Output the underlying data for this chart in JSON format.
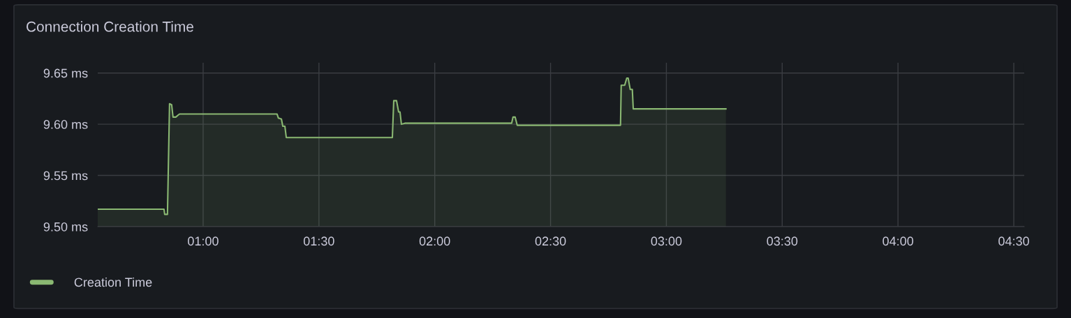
{
  "chart_data": {
    "type": "area",
    "title": "Connection Creation Time",
    "xlim": [
      0.545,
      4.545
    ],
    "xticks": [
      {
        "value": 1,
        "label": "01:00"
      },
      {
        "value": 1.5,
        "label": "01:30"
      },
      {
        "value": 2,
        "label": "02:00"
      },
      {
        "value": 2.5,
        "label": "02:30"
      },
      {
        "value": 3,
        "label": "03:00"
      },
      {
        "value": 3.5,
        "label": "03:30"
      },
      {
        "value": 4,
        "label": "04:00"
      },
      {
        "value": 4.5,
        "label": "04:30"
      }
    ],
    "ylim": [
      9.5,
      9.66
    ],
    "yticks": [
      {
        "value": 9.5,
        "label": "9.50 ms"
      },
      {
        "value": 9.55,
        "label": "9.55 ms"
      },
      {
        "value": 9.6,
        "label": "9.60 ms"
      },
      {
        "value": 9.65,
        "label": "9.65 ms"
      }
    ],
    "grid": true,
    "legend": "bottom left",
    "series": [
      {
        "name": "Creation Time",
        "color": "#8ab872",
        "x": [
          0.545,
          0.831,
          0.834,
          0.846,
          0.855,
          0.864,
          0.87,
          0.882,
          0.898,
          1.319,
          1.325,
          1.338,
          1.344,
          1.353,
          1.359,
          1.389,
          1.817,
          1.823,
          1.835,
          1.844,
          1.85,
          1.856,
          1.871,
          2.308,
          2.332,
          2.338,
          2.347,
          2.356,
          2.371,
          2.802,
          2.805,
          2.82,
          2.829,
          2.835,
          2.844,
          2.853,
          2.857,
          3.257
        ],
        "values": [
          9.517,
          9.517,
          9.512,
          9.512,
          9.62,
          9.619,
          9.607,
          9.607,
          9.61,
          9.61,
          9.606,
          9.605,
          9.598,
          9.598,
          9.587,
          9.587,
          9.587,
          9.623,
          9.623,
          9.612,
          9.612,
          9.6,
          9.601,
          9.601,
          9.601,
          9.607,
          9.607,
          9.599,
          9.599,
          9.599,
          9.638,
          9.638,
          9.645,
          9.645,
          9.634,
          9.634,
          9.615,
          9.615
        ]
      }
    ]
  }
}
